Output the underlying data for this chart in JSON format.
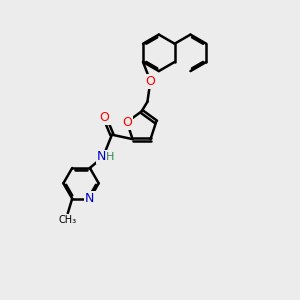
{
  "bg_color": "#ececec",
  "bond_color": "#000000",
  "bond_width": 1.8,
  "atom_colors": {
    "O": "#ff0000",
    "N": "#0000cd",
    "H": "#2e8b57"
  },
  "font_size": 9,
  "fig_size": [
    3.0,
    3.0
  ],
  "dpi": 100
}
